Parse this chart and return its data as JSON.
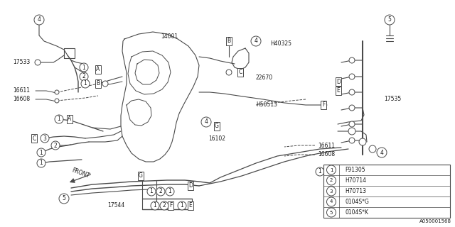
{
  "bg_color": "#ffffff",
  "line_color": "#4a4a4a",
  "label_color": "#1a1a1a",
  "diagram_number": "A050001568",
  "legend_items": [
    {
      "num": "1",
      "code": "F91305"
    },
    {
      "num": "2",
      "code": "H70714"
    },
    {
      "num": "3",
      "code": "H70713"
    },
    {
      "num": "4",
      "code": "0104S*G"
    },
    {
      "num": "5",
      "code": "0104S*K"
    }
  ],
  "figsize": [
    6.4,
    3.2
  ],
  "dpi": 100
}
